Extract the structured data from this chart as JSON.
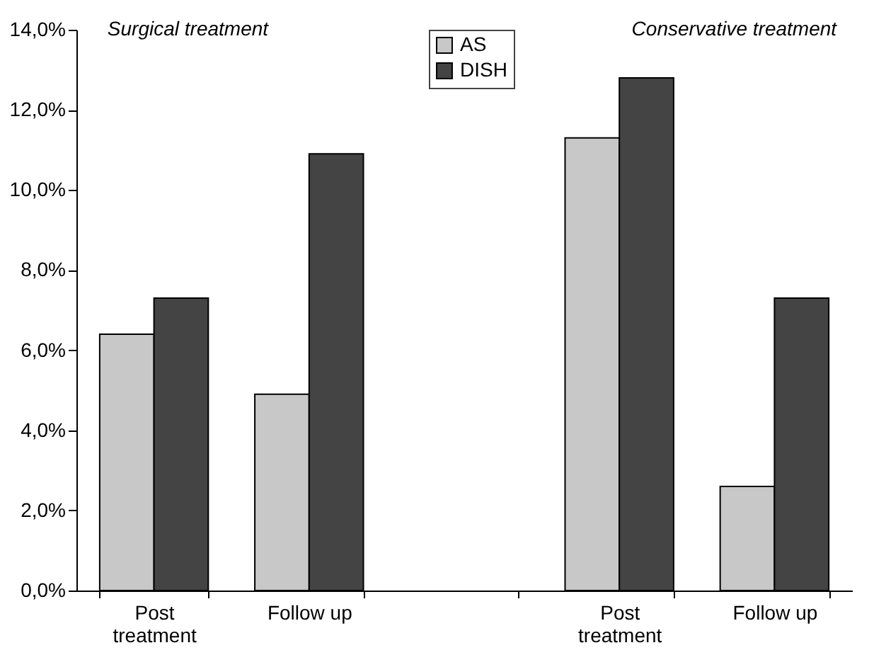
{
  "chart_data": {
    "type": "bar",
    "categories": [
      "Post treatment",
      "Follow up",
      null,
      "Post treatment",
      "Follow up"
    ],
    "series": [
      {
        "name": "AS",
        "color": "#c8c8c8",
        "values": [
          6.4,
          4.9,
          null,
          11.3,
          2.6
        ]
      },
      {
        "name": "DISH",
        "color": "#444444",
        "values": [
          7.3,
          10.9,
          null,
          12.8,
          7.3
        ]
      }
    ],
    "ylim": [
      0,
      14
    ],
    "yticks": [
      {
        "value": 0,
        "label": "0,0%"
      },
      {
        "value": 2,
        "label": "2,0%"
      },
      {
        "value": 4,
        "label": "4,0%"
      },
      {
        "value": 6,
        "label": "6,0%"
      },
      {
        "value": 8,
        "label": "8,0%"
      },
      {
        "value": 10,
        "label": "10,0%"
      },
      {
        "value": 12,
        "label": "12,0%"
      },
      {
        "value": 14,
        "label": "14,0%"
      }
    ],
    "annotations": [
      "Surgical treatment",
      "Conservative treatment"
    ],
    "grid": false,
    "legend": "top"
  }
}
